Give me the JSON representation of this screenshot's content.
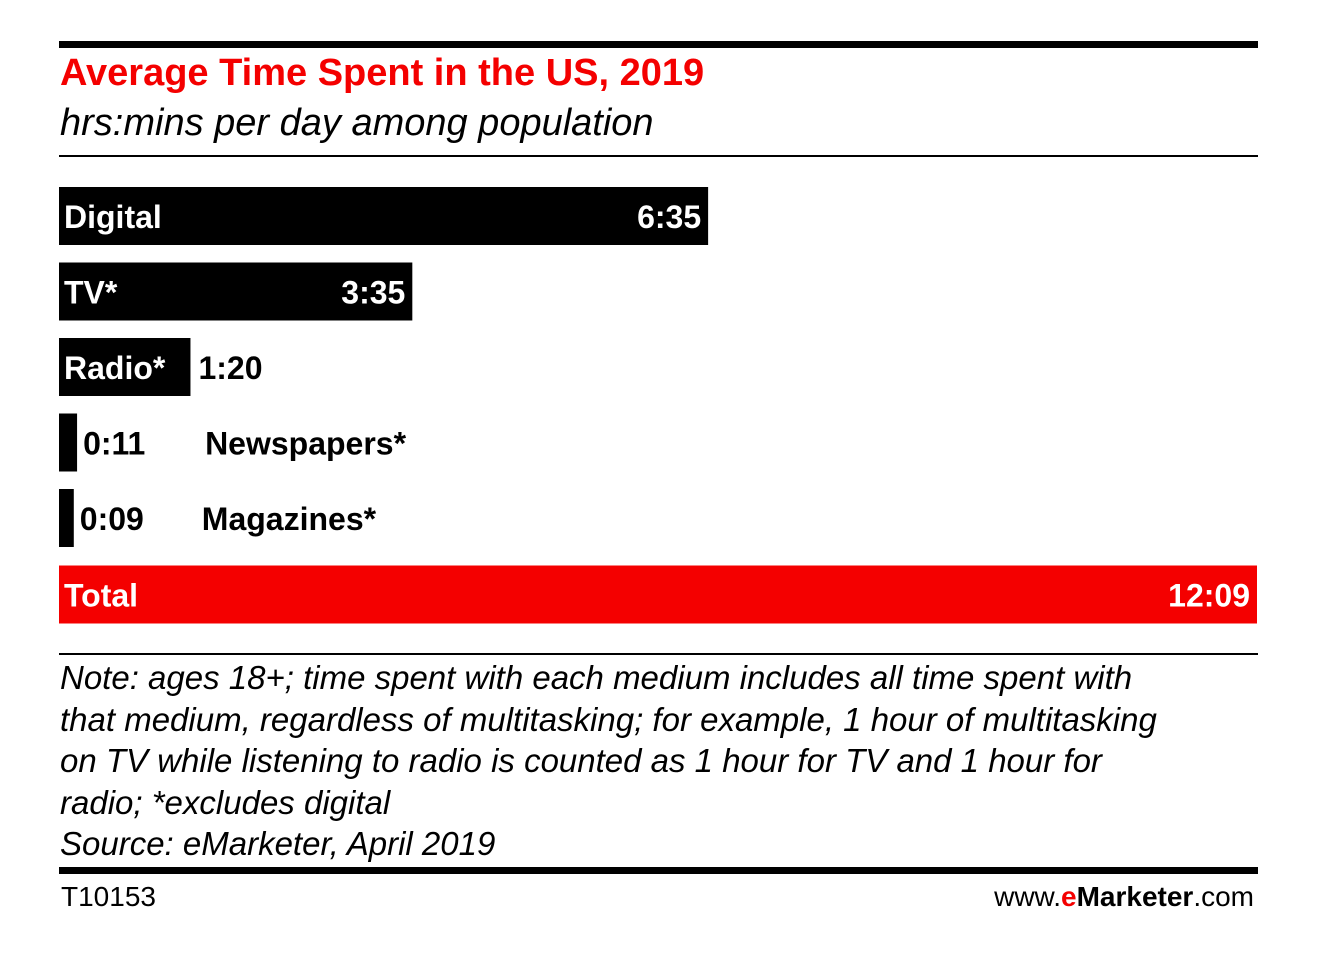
{
  "colors": {
    "accent": "#f40000",
    "bar": "#000000",
    "text": "#000000"
  },
  "chart_data": {
    "type": "bar",
    "orientation": "horizontal",
    "title": "Average Time Spent in the US, 2019",
    "subtitle": "hrs:mins per day among population",
    "categories": [
      "Digital",
      "TV*",
      "Radio*",
      "Newspapers*",
      "Magazines*"
    ],
    "values": [
      395,
      215,
      80,
      11,
      9
    ],
    "value_labels": [
      "6:35",
      "3:35",
      "1:20",
      "0:11",
      "0:09"
    ],
    "unit": "minutes per day",
    "total": {
      "label": "Total",
      "value": 729,
      "value_label": "12:09"
    },
    "grid": false,
    "legend": "none"
  },
  "note": {
    "lines": [
      "Note: ages 18+; time spent with each medium includes all time spent with",
      "that medium, regardless of multitasking; for example, 1 hour of multitasking",
      "on TV while listening to radio is counted as 1 hour for TV and 1 hour for",
      "radio; *excludes digital",
      "Source: eMarketer, April 2019"
    ]
  },
  "footer": {
    "chart_id": "T10153",
    "site_prefix": "www.",
    "site_e": "e",
    "site_brand": "Marketer",
    "site_suffix": ".com"
  }
}
